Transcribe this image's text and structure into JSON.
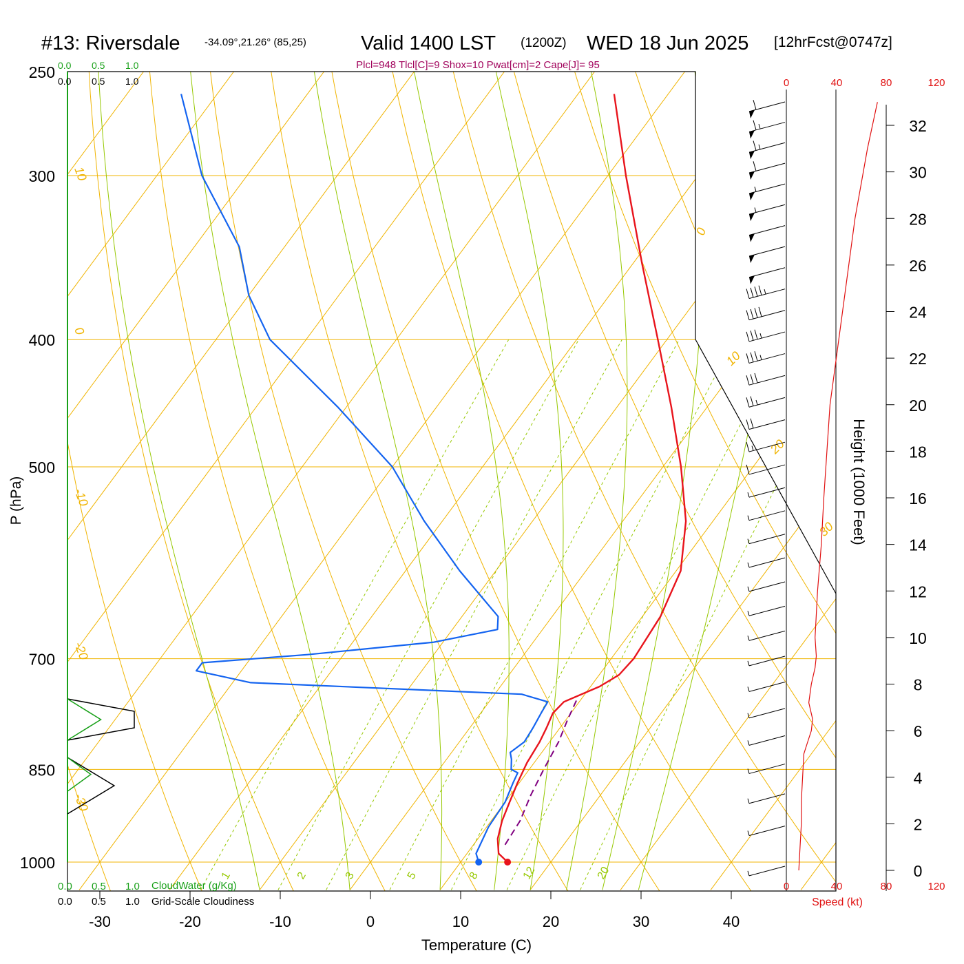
{
  "header": {
    "station": "#13: Riversdale",
    "coords": "-34.09°,21.26° (85,25)",
    "valid": "Valid 1400 LST",
    "utc": "(1200Z)",
    "date": "WED 18 Jun 2025",
    "forecast": "[12hrFcst@0747z]",
    "params": "Plcl=948 Tlcl[C]=9 Shox=10 Pwat[cm]=2 Cape[J]= 95"
  },
  "legend": {
    "cloudwater_ticks": [
      "0.0",
      "0.5",
      "1.0"
    ],
    "cloudiness_ticks": [
      "0.0",
      "0.5",
      "1.0"
    ],
    "cloudwater_label": "CloudWater (g/Kg)",
    "cloudiness_label": "Grid-Scale Cloudiness"
  },
  "speed_axis": {
    "ticks": [
      "0",
      "40",
      "80",
      "120"
    ],
    "label": "Speed (kt)"
  },
  "colors": {
    "temperature": "#e8141c",
    "dewpoint": "#1464f0",
    "parcel": "#800080",
    "isotherm": "#f0b400",
    "mixing_ratio": "#96c800",
    "moist_adiabat": "#96c800",
    "cloudwater": "#18a018",
    "title_accent": "#a0005a",
    "speed": "#e01010"
  },
  "chart_data": {
    "type": "line",
    "title": "#13: Riversdale",
    "xlabel": "Temperature (C)",
    "ylabel": "P (hPa)",
    "y2label": "Height (1000 Feet)",
    "xlim": [
      -34,
      46
    ],
    "ylim": [
      1000,
      250
    ],
    "y_scale": "log",
    "x_ticks": [
      "-30",
      "-20",
      "-10",
      "0",
      "10",
      "20",
      "30",
      "40"
    ],
    "y_ticks": [
      "250",
      "300",
      "400",
      "500",
      "700",
      "850",
      "1000"
    ],
    "height_ticks": [
      "0",
      "2",
      "4",
      "6",
      "8",
      "10",
      "12",
      "14",
      "16",
      "18",
      "20",
      "22",
      "24",
      "26",
      "28",
      "30",
      "32"
    ],
    "isotherm_labels": [
      "10",
      "0",
      "-10",
      "-20",
      "-30",
      "0",
      "10",
      "20",
      "30"
    ],
    "mixing_ratio_labels": [
      "1",
      "2",
      "3",
      "5",
      "8",
      "12",
      "20"
    ],
    "series": [
      {
        "name": "Temperature",
        "points": [
          [
            1000,
            15.2
          ],
          [
            985,
            13.5
          ],
          [
            960,
            12.2
          ],
          [
            930,
            11.2
          ],
          [
            900,
            10.5
          ],
          [
            870,
            9.8
          ],
          [
            840,
            9.2
          ],
          [
            810,
            8.9
          ],
          [
            790,
            8.5
          ],
          [
            770,
            8.0
          ],
          [
            755,
            8.3
          ],
          [
            735,
            11.0
          ],
          [
            720,
            12.2
          ],
          [
            700,
            12.5
          ],
          [
            650,
            12.0
          ],
          [
            600,
            10.5
          ],
          [
            550,
            7.0
          ],
          [
            500,
            2.0
          ],
          [
            450,
            -4.0
          ],
          [
            400,
            -11.0
          ],
          [
            350,
            -19.0
          ],
          [
            300,
            -28.0
          ],
          [
            260,
            -36.0
          ]
        ]
      },
      {
        "name": "Dewpoint",
        "points": [
          [
            1000,
            12.0
          ],
          [
            985,
            11.0
          ],
          [
            940,
            10.2
          ],
          [
            900,
            10.0
          ],
          [
            870,
            9.3
          ],
          [
            855,
            9.0
          ],
          [
            850,
            8.0
          ],
          [
            835,
            7.2
          ],
          [
            825,
            6.5
          ],
          [
            810,
            7.2
          ],
          [
            790,
            7.0
          ],
          [
            770,
            6.7
          ],
          [
            755,
            6.5
          ],
          [
            745,
            3.0
          ],
          [
            730,
            -28.0
          ],
          [
            715,
            -35.0
          ],
          [
            705,
            -35.0
          ],
          [
            695,
            -24.0
          ],
          [
            680,
            -11.0
          ],
          [
            665,
            -5.0
          ],
          [
            650,
            -6.0
          ],
          [
            600,
            -14.0
          ],
          [
            550,
            -22.0
          ],
          [
            500,
            -30.0
          ],
          [
            450,
            -41.0
          ],
          [
            400,
            -54.0
          ],
          [
            370,
            -60.0
          ],
          [
            340,
            -65.0
          ],
          [
            300,
            -75.0
          ],
          [
            260,
            -84.0
          ]
        ]
      },
      {
        "name": "Parcel",
        "points": [
          [
            970,
            13.5
          ],
          [
            930,
            13.2
          ],
          [
            890,
            12.3
          ],
          [
            850,
            11.6
          ],
          [
            810,
            11.0
          ],
          [
            780,
            10.2
          ],
          [
            750,
            9.5
          ]
        ]
      }
    ],
    "wind_speed_kt": [
      [
        0,
        10
      ],
      [
        1,
        11
      ],
      [
        2,
        12
      ],
      [
        3,
        12
      ],
      [
        4,
        13
      ],
      [
        5,
        14
      ],
      [
        5.5,
        17
      ],
      [
        6,
        20
      ],
      [
        6.5,
        21
      ],
      [
        7.2,
        18
      ],
      [
        8,
        20
      ],
      [
        8.7,
        23
      ],
      [
        9.2,
        24
      ],
      [
        10,
        23
      ],
      [
        12,
        25
      ],
      [
        14,
        28
      ],
      [
        16,
        30
      ],
      [
        20,
        35
      ],
      [
        24,
        45
      ],
      [
        28,
        55
      ],
      [
        31,
        65
      ],
      [
        33,
        73
      ]
    ],
    "wind_barbs_kt": [
      5,
      5,
      5,
      5,
      5,
      5,
      5,
      5,
      5,
      5,
      5,
      5,
      5,
      5,
      5,
      10,
      15,
      20,
      25,
      30,
      35,
      35,
      40,
      45,
      50,
      50,
      50,
      55,
      55,
      60,
      65,
      65,
      60
    ],
    "cloud_panel": [
      {
        "layer": "upper",
        "cloudwater": [
          [
            0.0,
            0
          ],
          [
            0.5,
            0.5
          ],
          [
            0.0,
            1
          ]
        ],
        "cloudiness": [
          [
            0.0,
            0
          ],
          [
            1.0,
            0.3
          ],
          [
            1.0,
            0.7
          ],
          [
            0.0,
            1
          ]
        ]
      },
      {
        "layer": "lower",
        "cloudwater": [
          [
            0.0,
            0
          ],
          [
            0.35,
            0.3
          ],
          [
            0.0,
            0.6
          ]
        ],
        "cloudiness": [
          [
            0.0,
            0
          ],
          [
            0.7,
            0.5
          ],
          [
            0.0,
            1
          ]
        ]
      }
    ]
  }
}
